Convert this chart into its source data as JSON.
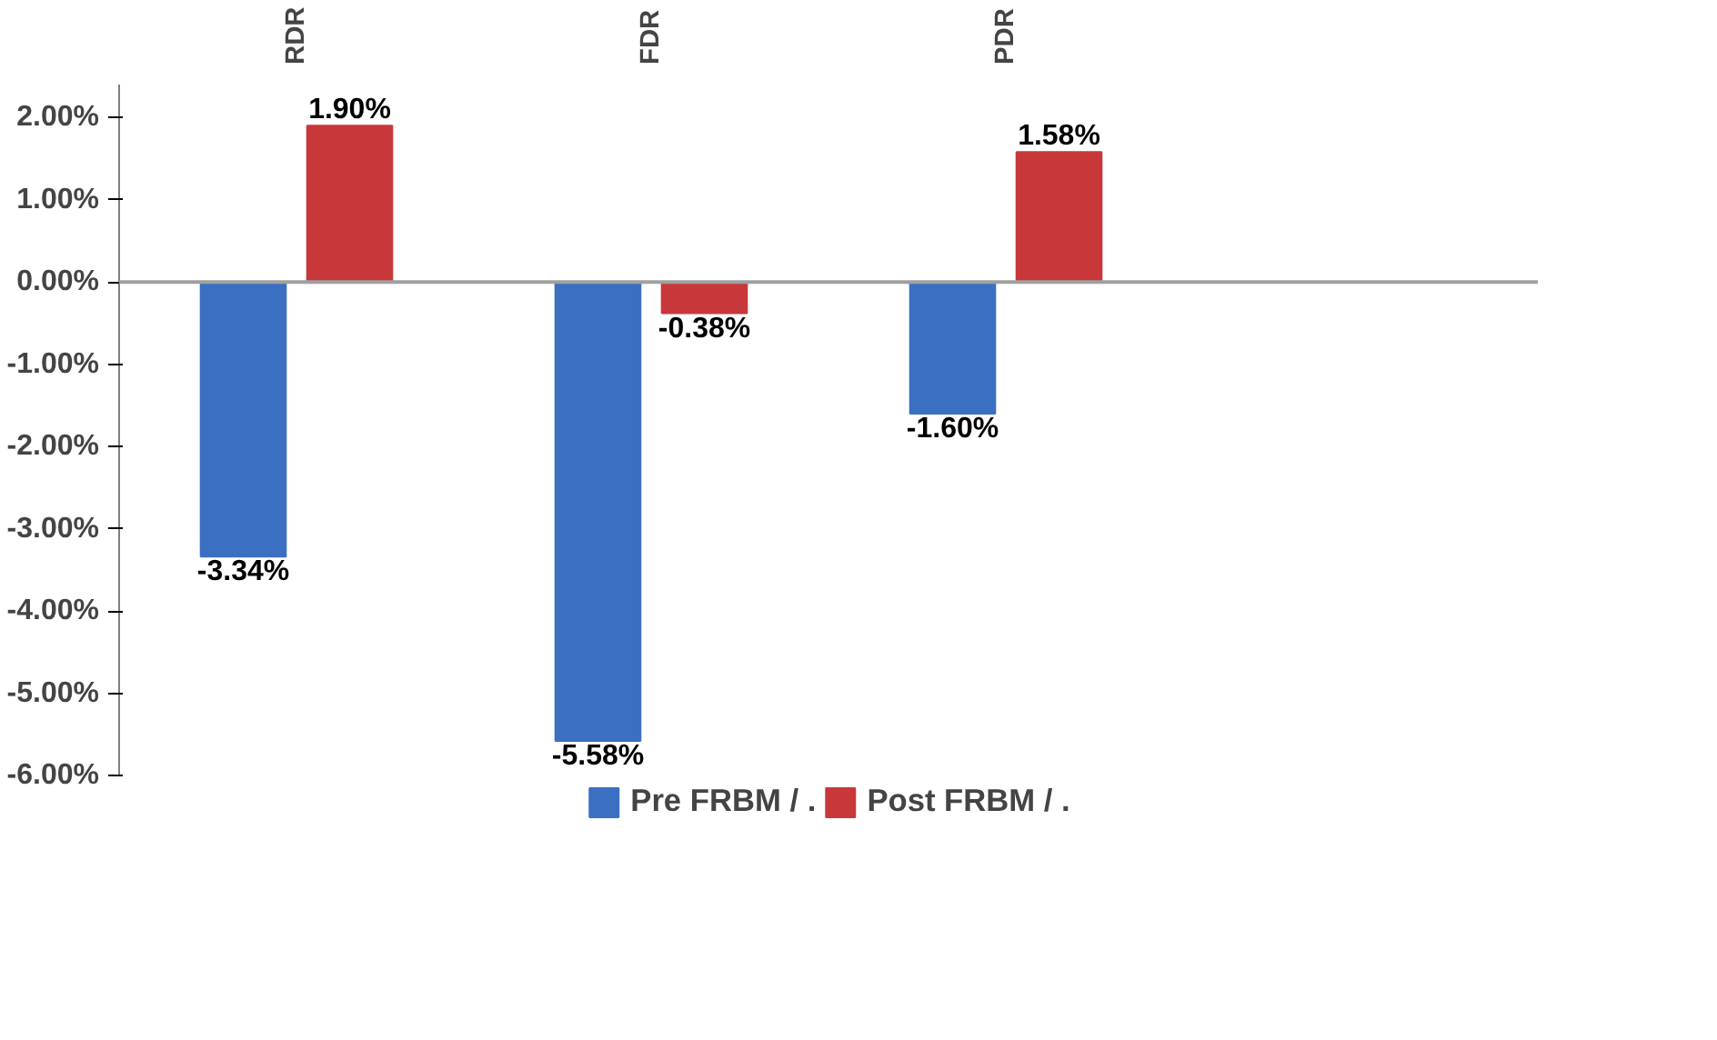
{
  "chart_data": {
    "type": "bar",
    "categories": [
      "RDR",
      "FDR",
      "PDR",
      null
    ],
    "series": [
      {
        "name": "Pre FRBM / .",
        "color": "#3b6fc2",
        "values": [
          -3.34,
          -5.58,
          -1.6,
          null
        ],
        "value_labels": [
          "-3.34%",
          "-5.58%",
          "-1.60%",
          null
        ]
      },
      {
        "name": "Post FRBM / .",
        "color": "#c8383a",
        "values": [
          1.9,
          -0.38,
          1.58,
          null
        ],
        "value_labels": [
          "1.90%",
          "-0.38%",
          "1.58%",
          null
        ]
      }
    ],
    "ylim": [
      -6,
      2.4
    ],
    "yticks": [
      {
        "value": 2,
        "label": "2.00%"
      },
      {
        "value": 1,
        "label": "1.00%"
      },
      {
        "value": 0,
        "label": "0.00%"
      },
      {
        "value": -1,
        "label": "-1.00%"
      },
      {
        "value": -2,
        "label": "-2.00%"
      },
      {
        "value": -3,
        "label": "-3.00%"
      },
      {
        "value": -4,
        "label": "-4.00%"
      },
      {
        "value": -5,
        "label": "-5.00%"
      },
      {
        "value": -6,
        "label": "-6.00%"
      }
    ],
    "legend": "bottom"
  }
}
